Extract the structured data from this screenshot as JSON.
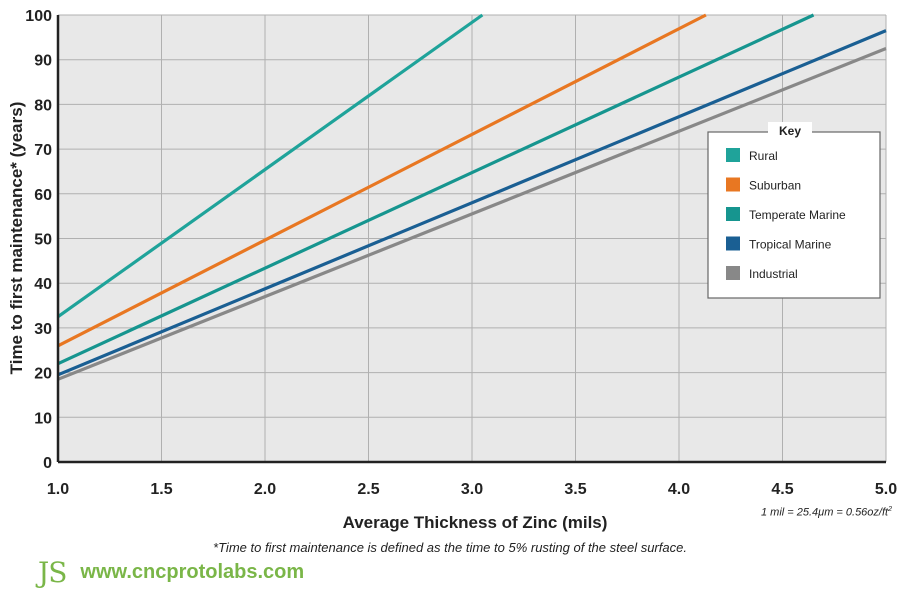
{
  "chart_data": {
    "type": "line",
    "xlabel": "Average Thickness of Zinc (mils)",
    "ylabel": "Time to first maintenance* (years)",
    "xlim": [
      1.0,
      5.0
    ],
    "ylim": [
      0,
      100
    ],
    "xticks": [
      "1.0",
      "1.5",
      "2.0",
      "2.5",
      "3.0",
      "3.5",
      "4.0",
      "4.5",
      "5.0"
    ],
    "yticks": [
      "0",
      "10",
      "20",
      "30",
      "40",
      "50",
      "60",
      "70",
      "80",
      "90",
      "100"
    ],
    "grid": true,
    "legend_title": "Key",
    "legend_position": "right",
    "series": [
      {
        "name": "Rural",
        "color": "#1fa39a",
        "x": [
          1.0,
          3.05
        ],
        "y": [
          32.5,
          100
        ]
      },
      {
        "name": "Suburban",
        "color": "#e87722",
        "x": [
          1.0,
          4.13
        ],
        "y": [
          26,
          100
        ]
      },
      {
        "name": "Temperate Marine",
        "color": "#16958f",
        "x": [
          1.0,
          4.65
        ],
        "y": [
          22,
          100
        ]
      },
      {
        "name": "Tropical Marine",
        "color": "#1a5f93",
        "x": [
          1.0,
          5.0
        ],
        "y": [
          19.5,
          96.5
        ]
      },
      {
        "name": "Industrial",
        "color": "#888888",
        "x": [
          1.0,
          5.0
        ],
        "y": [
          18.5,
          92.5
        ]
      }
    ]
  },
  "notes": {
    "units": "1 mil = 25.4μm = 0.56oz/ft",
    "units_sup": "2",
    "footnote": "*Time to first maintenance is defined as the time to 5% rusting of the steel surface."
  },
  "brand": {
    "logo": "JS",
    "url": "www.cncprotolabs.com",
    "color": "#7ab648"
  }
}
